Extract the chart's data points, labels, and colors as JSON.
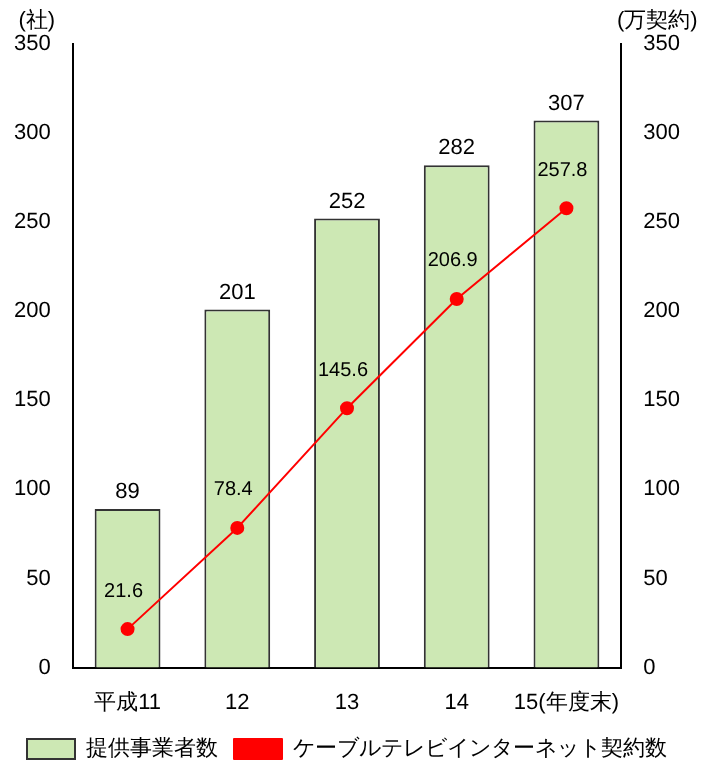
{
  "chart_data": {
    "type": "bar",
    "ylabel": "(社)",
    "y2label": "(万契約)",
    "categories": [
      "平成11",
      "12",
      "13",
      "14",
      "15(年度末)"
    ],
    "series": [
      {
        "name": "提供事業者数",
        "color": "#cde8b4",
        "values": [
          89,
          201,
          252,
          282,
          307
        ]
      },
      {
        "name": "ケーブルテレビインターネット契約数",
        "type": "line",
        "axis": "y2",
        "color": "#ff0000",
        "marker": "circle",
        "values": [
          21.6,
          78.4,
          145.6,
          206.9,
          257.8
        ]
      }
    ],
    "ylim": [
      0,
      350
    ],
    "yticks": [
      0,
      50,
      100,
      150,
      200,
      250,
      300,
      350
    ],
    "y2lim": [
      0,
      350
    ],
    "y2ticks": [
      0,
      50,
      100,
      150,
      200,
      250,
      300,
      350
    ],
    "data_labels": true,
    "legend": "bottom",
    "grid": false
  }
}
